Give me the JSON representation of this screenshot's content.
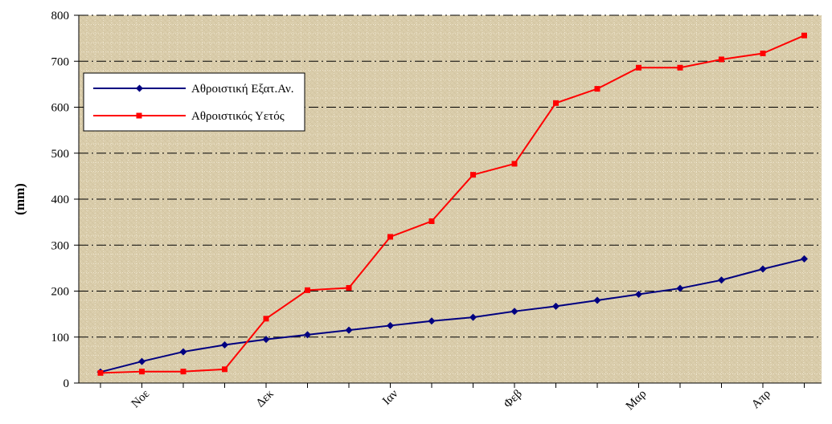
{
  "chart_data": {
    "type": "line",
    "title": "",
    "xlabel": "",
    "ylabel": "(mm)",
    "ylim": [
      0,
      800
    ],
    "yticks": [
      0,
      100,
      200,
      300,
      400,
      500,
      600,
      700,
      800
    ],
    "x_tick_labels": [
      {
        "index": 1,
        "label": "Νοε"
      },
      {
        "index": 4,
        "label": "Δεκ"
      },
      {
        "index": 7,
        "label": "Ιαν"
      },
      {
        "index": 10,
        "label": "Φεβ"
      },
      {
        "index": 13,
        "label": "Μαρ"
      },
      {
        "index": 16,
        "label": "Απρ"
      }
    ],
    "grid": true,
    "legend_position": "top-left",
    "series": [
      {
        "name": "Αθροιστική Εξατ.Αν.",
        "color": "#000080",
        "marker": "diamond",
        "values": [
          24,
          47,
          68,
          83,
          95,
          105,
          115,
          125,
          135,
          143,
          156,
          167,
          180,
          193,
          206,
          224,
          248,
          270
        ]
      },
      {
        "name": "Αθροιστικός Υετός",
        "color": "#ff0000",
        "marker": "square",
        "values": [
          22,
          25,
          25,
          30,
          140,
          202,
          207,
          318,
          352,
          453,
          477,
          609,
          640,
          686,
          686,
          704,
          717,
          756
        ]
      }
    ]
  },
  "style": {
    "plot_background": "#d9ccaa",
    "grid_color": "#000000",
    "axis_color": "#000000"
  }
}
